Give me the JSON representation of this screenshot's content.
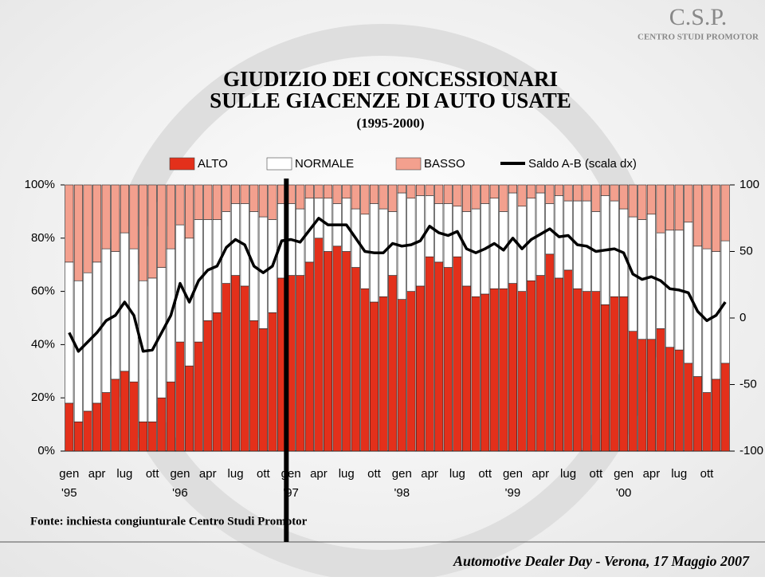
{
  "logo": {
    "name": "C.S.P.",
    "subtitle": "CENTRO STUDI PROMOTOR"
  },
  "header": {
    "title_lines": [
      "GIUDIZIO DEI CONCESSIONARI",
      "SULLE GIACENZE DI AUTO USATE",
      "(1995-2000)"
    ]
  },
  "source": "Fonte: inchiesta congiunturale Centro Studi Promotor",
  "footer": "Automotive Dealer Day - Verona, 17 Maggio 2007",
  "chart_data": {
    "type": "bar",
    "stacked": true,
    "categories": [
      "gen",
      null,
      null,
      "apr",
      null,
      null,
      "lug",
      null,
      null,
      "ott",
      null,
      null,
      "gen",
      null,
      null,
      "apr",
      null,
      null,
      "lug",
      null,
      null,
      "ott",
      null,
      null,
      "gen",
      null,
      null,
      "apr",
      null,
      null,
      "lug",
      null,
      null,
      "ott",
      null,
      null,
      "gen",
      null,
      null,
      "apr",
      null,
      null,
      "lug",
      null,
      null,
      "ott",
      null,
      null,
      "gen",
      null,
      null,
      "apr",
      null,
      null,
      "lug",
      null,
      null,
      "ott",
      null,
      null,
      "gen",
      null,
      null,
      "apr",
      null,
      null,
      "lug",
      null,
      null,
      "ott",
      null,
      null
    ],
    "years": [
      "'95",
      null,
      null,
      null,
      null,
      null,
      null,
      null,
      null,
      null,
      null,
      null,
      "'96",
      null,
      null,
      null,
      null,
      null,
      null,
      null,
      null,
      null,
      null,
      null,
      "'97",
      null,
      null,
      null,
      null,
      null,
      null,
      null,
      null,
      null,
      null,
      null,
      "'98",
      null,
      null,
      null,
      null,
      null,
      null,
      null,
      null,
      null,
      null,
      null,
      "'99",
      null,
      null,
      null,
      null,
      null,
      null,
      null,
      null,
      null,
      null,
      null,
      "'00",
      null,
      null,
      null,
      null,
      null,
      null,
      null,
      null,
      null,
      null,
      null
    ],
    "series": [
      {
        "name": "ALTO",
        "color": "#e3301b",
        "values": [
          18,
          11,
          15,
          18,
          22,
          27,
          30,
          26,
          11,
          11,
          20,
          26,
          41,
          32,
          41,
          49,
          52,
          63,
          66,
          62,
          49,
          46,
          52,
          65,
          66,
          66,
          71,
          80,
          75,
          77,
          75,
          69,
          61,
          56,
          58,
          66,
          57,
          60,
          62,
          73,
          71,
          69,
          73,
          62,
          58,
          59,
          61,
          61,
          63,
          60,
          64,
          66,
          74,
          65,
          68,
          61,
          60,
          60,
          55,
          58,
          58,
          45,
          42,
          42,
          46,
          39,
          38,
          33,
          28,
          22,
          27,
          33
        ]
      },
      {
        "name": "NORMALE",
        "color": "#ffffff",
        "values": [
          53,
          53,
          52,
          53,
          54,
          48,
          52,
          50,
          53,
          54,
          49,
          50,
          44,
          48,
          46,
          38,
          35,
          27,
          27,
          31,
          41,
          42,
          35,
          28,
          27,
          25,
          24,
          15,
          20,
          16,
          20,
          22,
          28,
          37,
          33,
          24,
          40,
          35,
          34,
          23,
          22,
          24,
          19,
          28,
          33,
          34,
          34,
          29,
          34,
          32,
          31,
          31,
          19,
          31,
          26,
          33,
          34,
          30,
          41,
          36,
          33,
          43,
          45,
          47,
          36,
          44,
          45,
          53,
          49,
          54,
          48,
          46
        ]
      },
      {
        "name": "BASSO",
        "color": "#f3a08e",
        "values": [
          29,
          36,
          33,
          29,
          24,
          25,
          18,
          24,
          36,
          35,
          31,
          24,
          15,
          20,
          13,
          13,
          13,
          10,
          7,
          7,
          10,
          12,
          13,
          7,
          7,
          9,
          5,
          5,
          5,
          7,
          5,
          9,
          11,
          7,
          9,
          10,
          3,
          5,
          4,
          4,
          7,
          7,
          8,
          10,
          9,
          7,
          5,
          10,
          3,
          8,
          5,
          3,
          7,
          4,
          6,
          6,
          6,
          10,
          4,
          6,
          9,
          12,
          13,
          11,
          18,
          17,
          17,
          14,
          23,
          24,
          25,
          21
        ]
      },
      {
        "name": "Saldo A-B (scala dx)",
        "type": "line",
        "axis": "y2",
        "color": "#000000",
        "values": [
          -11,
          -25,
          -18,
          -11,
          -2,
          2,
          12,
          2,
          -25,
          -24,
          -11,
          2,
          26,
          12,
          28,
          36,
          39,
          53,
          59,
          55,
          39,
          34,
          39,
          58,
          59,
          57,
          66,
          75,
          70,
          70,
          70,
          60,
          50,
          49,
          49,
          56,
          54,
          55,
          58,
          69,
          64,
          62,
          65,
          52,
          49,
          52,
          56,
          51,
          60,
          52,
          59,
          63,
          67,
          61,
          62,
          55,
          54,
          50,
          51,
          52,
          49,
          33,
          29,
          31,
          28,
          22,
          21,
          19,
          5,
          -2,
          2,
          12
        ]
      }
    ],
    "ylim": [
      0,
      100
    ],
    "yticks": [
      {
        "value": 0,
        "label": "0%"
      },
      {
        "value": 20,
        "label": "20%"
      },
      {
        "value": 40,
        "label": "40%"
      },
      {
        "value": 60,
        "label": "60%"
      },
      {
        "value": 80,
        "label": "80%"
      },
      {
        "value": 100,
        "label": "100%"
      }
    ],
    "y2lim": [
      -100,
      100
    ],
    "y2ticks": [
      -100,
      -50,
      0,
      50,
      100
    ],
    "legend": "top"
  }
}
